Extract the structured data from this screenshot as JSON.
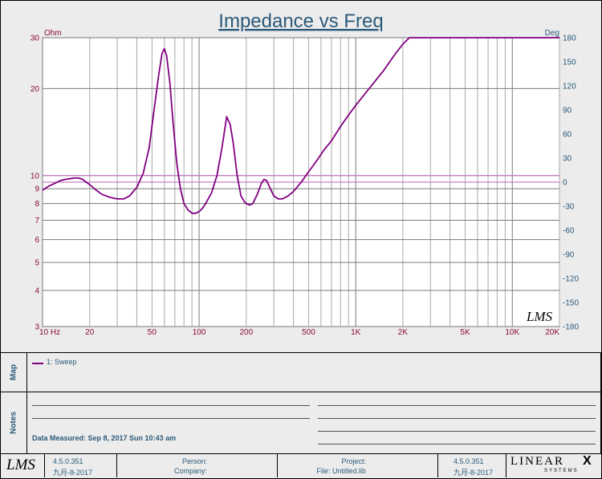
{
  "chart_data": {
    "type": "line",
    "title": "Impedance vs Freq",
    "y_left_unit": "Ohm",
    "y_right_unit": "Deg",
    "x_scale": "log",
    "x_range": [
      10,
      20000
    ],
    "y_left_scale": "log",
    "y_left_range": [
      3,
      30
    ],
    "y_right_range": [
      -180,
      180
    ],
    "grid": true,
    "x_tick_labels": [
      {
        "v": 10,
        "t": "10  Hz"
      },
      {
        "v": 20,
        "t": "20"
      },
      {
        "v": 50,
        "t": "50"
      },
      {
        "v": 100,
        "t": "100"
      },
      {
        "v": 200,
        "t": "200"
      },
      {
        "v": 500,
        "t": "500"
      },
      {
        "v": 1000,
        "t": "1K"
      },
      {
        "v": 2000,
        "t": "2K"
      },
      {
        "v": 5000,
        "t": "5K"
      },
      {
        "v": 10000,
        "t": "10K"
      },
      {
        "v": 20000,
        "t": "20K"
      }
    ],
    "y_left_ticks": [
      {
        "v": 30,
        "t": "30"
      },
      {
        "v": 20,
        "t": "20"
      },
      {
        "v": 10,
        "t": "10"
      },
      {
        "v": 9,
        "t": "9"
      },
      {
        "v": 8,
        "t": "8"
      },
      {
        "v": 7,
        "t": "7"
      },
      {
        "v": 6,
        "t": "6"
      },
      {
        "v": 5,
        "t": "5"
      },
      {
        "v": 4,
        "t": "4"
      },
      {
        "v": 3,
        "t": "3"
      }
    ],
    "y_right_ticks": [
      {
        "v": 180,
        "t": "180"
      },
      {
        "v": 150,
        "t": "150"
      },
      {
        "v": 120,
        "t": "120"
      },
      {
        "v": 90,
        "t": "90"
      },
      {
        "v": 60,
        "t": "60"
      },
      {
        "v": 30,
        "t": "30"
      },
      {
        "v": 0,
        "t": "0"
      },
      {
        "v": -30,
        "t": "-30"
      },
      {
        "v": -60,
        "t": "-60"
      },
      {
        "v": -90,
        "t": "-90"
      },
      {
        "v": -120,
        "t": "-120"
      },
      {
        "v": -150,
        "t": "-150"
      },
      {
        "v": -180,
        "t": "-180"
      }
    ],
    "series": [
      {
        "name": "1: Sweep",
        "color": "#800080",
        "x": [
          10,
          11,
          12,
          13,
          14,
          15,
          16,
          17,
          18,
          20,
          22,
          24,
          27,
          30,
          33,
          36,
          40,
          44,
          48,
          52,
          55,
          58,
          60,
          62,
          65,
          68,
          72,
          76,
          80,
          85,
          90,
          95,
          100,
          105,
          110,
          120,
          130,
          140,
          150,
          158,
          165,
          175,
          185,
          195,
          200,
          210,
          220,
          235,
          250,
          260,
          270,
          285,
          300,
          320,
          340,
          370,
          400,
          450,
          500,
          560,
          630,
          700,
          800,
          900,
          1000,
          1200,
          1500,
          1800,
          2000,
          2200,
          2500,
          3000,
          3500,
          4000,
          4500,
          5000,
          7000,
          10000,
          15000,
          20000
        ],
        "y_left": [
          8.9,
          9.2,
          9.4,
          9.6,
          9.7,
          9.75,
          9.8,
          9.8,
          9.7,
          9.3,
          8.9,
          8.6,
          8.4,
          8.3,
          8.3,
          8.5,
          9.1,
          10.2,
          12.5,
          17.5,
          22.0,
          26.5,
          27.5,
          26.0,
          21.0,
          15.5,
          11.0,
          9.0,
          8.0,
          7.6,
          7.4,
          7.4,
          7.5,
          7.7,
          8.0,
          8.7,
          10.0,
          12.5,
          16.0,
          15.0,
          13.0,
          10.0,
          8.5,
          8.1,
          8.0,
          7.9,
          8.0,
          8.6,
          9.4,
          9.7,
          9.6,
          9.0,
          8.5,
          8.3,
          8.3,
          8.5,
          8.8,
          9.5,
          10.3,
          11.2,
          12.3,
          13.2,
          14.8,
          16.2,
          17.5,
          19.8,
          23.0,
          26.5,
          28.5,
          30.5,
          32.0,
          33.0,
          33.0,
          33.0,
          33.0,
          33.0,
          33.0,
          33.0,
          33.0,
          33.0
        ],
        "y_right": [
          180,
          180,
          180,
          180,
          180,
          180,
          180,
          180,
          180,
          180,
          180,
          180,
          180,
          180,
          180,
          180,
          180,
          180,
          180,
          180,
          180,
          180,
          180,
          180,
          180,
          180,
          180,
          180,
          180,
          180,
          180,
          180,
          180,
          180,
          180,
          180,
          180,
          180,
          180,
          180,
          180,
          180,
          180,
          180,
          180,
          180,
          180,
          180,
          180,
          180,
          180,
          180,
          180,
          180,
          180,
          180,
          180,
          180,
          180,
          180,
          180,
          180,
          180,
          180,
          180,
          180,
          180,
          180,
          180,
          180,
          180,
          180,
          180,
          180,
          180,
          180,
          180,
          180,
          180,
          180
        ]
      }
    ],
    "reference_lines": [
      {
        "axis": "y_left",
        "value": 10,
        "color": "#c77fc7"
      },
      {
        "axis": "y_right",
        "value": 0,
        "color": "#c77fc7"
      }
    ]
  },
  "watermark": "LMS",
  "map": {
    "tab_label": "Map",
    "legend_items": [
      {
        "label": "1: Sweep",
        "color": "#800080"
      }
    ]
  },
  "notes": {
    "tab_label": "Notes",
    "date_measured": "Data Measured: Sep 8, 2017 Sun 10:43 am"
  },
  "footer": {
    "logo": "LMS",
    "version_left": "4.5.0.351",
    "date_left": "九月-8-2017",
    "person_label": "Person:",
    "company_label": "Company:",
    "project_label": "Project:",
    "file_label": "File: Untitled.lib",
    "version_right": "4.5.0.351",
    "date_right": "九月-8-2017",
    "brand_top": "LINEAR",
    "brand_x": "X",
    "brand_bottom": "SYSTEMS"
  }
}
